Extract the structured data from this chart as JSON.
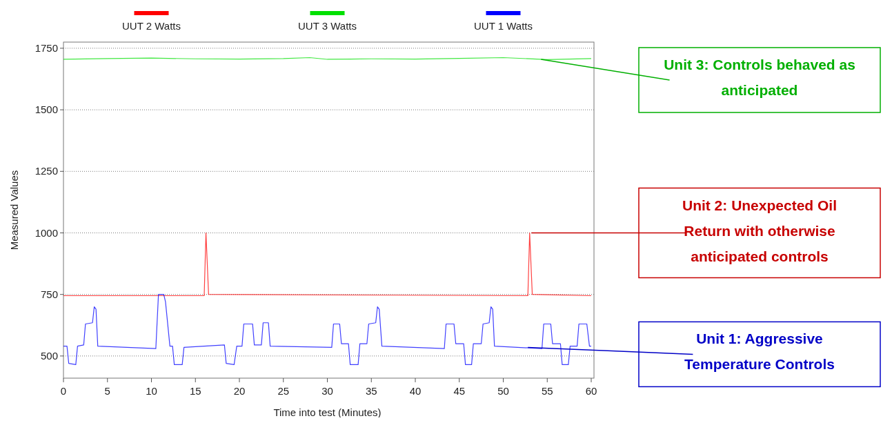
{
  "chart_data": {
    "type": "line",
    "xlabel": "Time into test (Minutes)",
    "ylabel": "Measured Values",
    "xlim": [
      0,
      60
    ],
    "xticks": [
      0,
      5,
      10,
      15,
      20,
      25,
      30,
      35,
      40,
      45,
      50,
      55,
      60
    ],
    "ylim": [
      410,
      1775
    ],
    "yticks": [
      500,
      750,
      1000,
      1250,
      1500,
      1750
    ],
    "grid": "y",
    "legend": "top",
    "marker": "none",
    "line_style": "solid",
    "series": [
      {
        "name": "UUT 2 Watts",
        "color": "#ff0000",
        "x": [
          0,
          16,
          16.2,
          16.5,
          52.8,
          53,
          53.3,
          60
        ],
        "values": [
          745,
          745,
          1000,
          750,
          745,
          1000,
          750,
          745
        ]
      },
      {
        "name": "UUT 3 Watts",
        "color": "#00e000",
        "x": [
          0,
          5,
          10,
          15,
          20,
          25,
          28,
          30,
          35,
          40,
          45,
          50,
          55,
          60
        ],
        "values": [
          1705,
          1708,
          1710,
          1707,
          1706,
          1708,
          1712,
          1705,
          1707,
          1706,
          1709,
          1712,
          1704,
          1708
        ]
      },
      {
        "name": "UUT 1 Watts",
        "color": "#0000ff",
        "x": [
          0,
          0.4,
          0.6,
          1.4,
          1.6,
          2.3,
          2.5,
          3.3,
          3.5,
          3.7,
          3.9,
          10.5,
          10.8,
          11.4,
          11.6,
          12.1,
          12.4,
          12.6,
          13.5,
          13.7,
          18.3,
          18.5,
          19.4,
          19.7,
          20.3,
          20.5,
          21.5,
          21.7,
          22.5,
          22.7,
          23.3,
          23.5,
          30.5,
          30.7,
          31.4,
          31.6,
          32.4,
          32.6,
          33.5,
          33.7,
          34.5,
          34.7,
          35.5,
          35.7,
          35.9,
          36.2,
          43.3,
          43.5,
          44.4,
          44.6,
          45.5,
          45.7,
          46.4,
          46.6,
          47.5,
          47.7,
          48.4,
          48.6,
          48.8,
          49,
          54.4,
          54.6,
          55.4,
          55.6,
          56.5,
          56.7,
          57.4,
          57.6,
          58.4,
          58.6,
          59.5,
          59.8,
          60
        ],
        "values": [
          540,
          540,
          470,
          465,
          540,
          545,
          630,
          635,
          700,
          690,
          540,
          530,
          750,
          750,
          720,
          540,
          540,
          465,
          465,
          535,
          545,
          470,
          465,
          540,
          540,
          630,
          630,
          545,
          545,
          635,
          635,
          540,
          535,
          630,
          630,
          550,
          550,
          465,
          465,
          550,
          550,
          630,
          635,
          700,
          690,
          540,
          530,
          630,
          630,
          550,
          550,
          465,
          465,
          550,
          550,
          630,
          635,
          700,
          690,
          540,
          530,
          630,
          630,
          550,
          550,
          465,
          465,
          540,
          540,
          630,
          630,
          540,
          540
        ]
      }
    ],
    "annotations": [
      {
        "text": "Unit 3: Controls behaved as anticipated",
        "x": 54.3,
        "y": 1705
      },
      {
        "text": "Unit 2: Unexpected Oil Return with otherwise anticipated controls",
        "x": 53.2,
        "y": 1000
      },
      {
        "text": "Unit 1: Aggressive Temperature Controls",
        "x": 52.8,
        "y": 535
      }
    ]
  }
}
